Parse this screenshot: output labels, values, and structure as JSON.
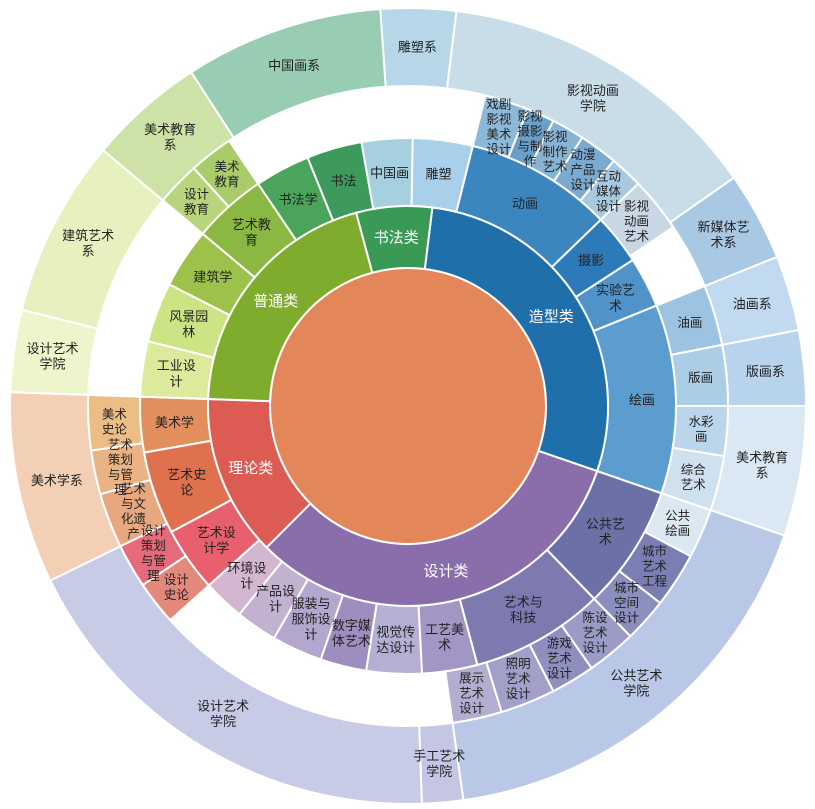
{
  "chart_data": {
    "type": "sunburst",
    "title": "",
    "colors": {
      "zaoxing": "#1f6faa",
      "sheji": "#8a6eab",
      "lilun": "#dc5b52",
      "putong": "#7fac2c",
      "shufa": "#3a9a55",
      "center": "#e3875a"
    },
    "rings": [
      {
        "level": 1,
        "segments": [
          {
            "label": "造型类",
            "start": 7,
            "end": 109,
            "color": "#1f6faa"
          },
          {
            "label": "设计类",
            "start": 109,
            "end": 225,
            "color": "#8a6eab"
          },
          {
            "label": "理论类",
            "start": 225,
            "end": 272,
            "color": "#dc5b52"
          },
          {
            "label": "普通类",
            "start": 272,
            "end": 345,
            "color": "#7fac2c"
          },
          {
            "label": "书法类",
            "start": 345,
            "end": 367,
            "color": "#3a9a55"
          }
        ]
      },
      {
        "level": 2,
        "segments": [
          {
            "label": "雕塑",
            "start": 1,
            "end": 14,
            "color": "#a9d0ea"
          },
          {
            "label": "动画",
            "start": 14,
            "end": 46,
            "color": "#3c86c0"
          },
          {
            "label": "摄影",
            "start": 46,
            "end": 57,
            "color": "#2d7ab8"
          },
          {
            "label": "实验艺术",
            "start": 57,
            "end": 68,
            "color": "#4f93c9"
          },
          {
            "label": "绘画",
            "start": 68,
            "end": 109,
            "color": "#5b9dcf"
          },
          {
            "label": "公共艺术",
            "start": 109,
            "end": 136,
            "color": "#6b71a6"
          },
          {
            "label": "艺术与科技",
            "start": 136,
            "end": 165,
            "color": "#7e7ab0"
          },
          {
            "label": "工艺美术",
            "start": 165,
            "end": 177,
            "color": "#a297c4"
          },
          {
            "label": "视觉传达设计",
            "start": 177,
            "end": 189,
            "color": "#b5b0d3"
          },
          {
            "label": "数字媒体艺术",
            "start": 189,
            "end": 199,
            "color": "#9e8dbf"
          },
          {
            "label": "服装与服饰设计",
            "start": 199,
            "end": 210,
            "color": "#b3a6cf"
          },
          {
            "label": "产品设计",
            "start": 210,
            "end": 219,
            "color": "#c2b2cf"
          },
          {
            "label": "环境设计",
            "start": 219,
            "end": 228,
            "color": "#d3b6cf"
          },
          {
            "label": "艺术设计学",
            "start": 228,
            "end": 242,
            "color": "#e8606d"
          },
          {
            "label": "艺术史论",
            "start": 242,
            "end": 260,
            "color": "#e0714f"
          },
          {
            "label": "美术学",
            "start": 260,
            "end": 272,
            "color": "#e28f5e"
          },
          {
            "label": "工业设计",
            "start": 272,
            "end": 284,
            "color": "#dcea9c"
          },
          {
            "label": "风景园林",
            "start": 284,
            "end": 297,
            "color": "#cce484"
          },
          {
            "label": "建筑学",
            "start": 297,
            "end": 310,
            "color": "#9dc24c"
          },
          {
            "label": "艺术教育",
            "start": 310,
            "end": 326,
            "color": "#8ab842"
          },
          {
            "label": "书法学",
            "start": 326,
            "end": 338,
            "color": "#4aa55a"
          },
          {
            "label": "书法",
            "start": 338,
            "end": 350,
            "color": "#3e9a5c"
          },
          {
            "label": "中国画",
            "start": 350,
            "end": 361,
            "color": "#a6cfe0"
          }
        ]
      },
      {
        "level": 3,
        "segments": [
          {
            "label": "戏剧影视美术设计",
            "start": 14,
            "end": 22,
            "color": "#8db8d8"
          },
          {
            "label": "影视摄影与制作",
            "start": 22,
            "end": 27,
            "color": "#6a9fc7"
          },
          {
            "label": "影视制作艺术",
            "start": 27,
            "end": 33,
            "color": "#88b4d4"
          },
          {
            "label": "动漫产品设计",
            "start": 33,
            "end": 40,
            "color": "#7aaad0"
          },
          {
            "label": "互动媒体设计",
            "start": 40,
            "end": 46,
            "color": "#a9c9e1"
          },
          {
            "label": "影视动画艺术",
            "start": 46,
            "end": 56,
            "color": "#c8d7e3"
          },
          {
            "label": "油画",
            "start": 68,
            "end": 79,
            "color": "#9cc4e2"
          },
          {
            "label": "版画",
            "start": 79,
            "end": 90,
            "color": "#abcde6"
          },
          {
            "label": "水彩画",
            "start": 90,
            "end": 99,
            "color": "#bbd6ea"
          },
          {
            "label": "综合艺术",
            "start": 99,
            "end": 109,
            "color": "#cfe1ef"
          },
          {
            "label": "公共绘画",
            "start": 109,
            "end": 118,
            "color": "#dbe8f2"
          },
          {
            "label": "城市艺术工程",
            "start": 118,
            "end": 128,
            "color": "#7a7fb3"
          },
          {
            "label": "城市空间设计",
            "start": 128,
            "end": 136,
            "color": "#8a8fbe"
          },
          {
            "label": "陈设艺术设计",
            "start": 136,
            "end": 145,
            "color": "#9a9cc6"
          },
          {
            "label": "游戏艺术设计",
            "start": 145,
            "end": 153,
            "color": "#8e8fbf"
          },
          {
            "label": "照明艺术设计",
            "start": 153,
            "end": 163,
            "color": "#a29fc9"
          },
          {
            "label": "展示艺术设计",
            "start": 163,
            "end": 172,
            "color": "#b2aed2"
          },
          {
            "label": "设计史论",
            "start": 228,
            "end": 236,
            "color": "#e3897c"
          },
          {
            "label": "设计策划与管理",
            "start": 236,
            "end": 244,
            "color": "#e66b7a"
          },
          {
            "label": "艺术与文化遗产",
            "start": 244,
            "end": 254,
            "color": "#e8a77f"
          },
          {
            "label": "艺术策划与管理",
            "start": 254,
            "end": 262,
            "color": "#eab384"
          },
          {
            "label": "美术史论",
            "start": 262,
            "end": 272,
            "color": "#edbd86"
          },
          {
            "label": "设计教育",
            "start": 310,
            "end": 318,
            "color": "#b9d57c"
          },
          {
            "label": "美术教育",
            "start": 318,
            "end": 326,
            "color": "#a9cc6b"
          }
        ]
      },
      {
        "level": 4,
        "segments": [
          {
            "label": "雕塑系",
            "start": -4,
            "end": 7,
            "color": "#b7d7e8"
          },
          {
            "label": "影视动画学院",
            "start": 7,
            "end": 55,
            "color": "#c9dde9"
          },
          {
            "label": "新媒体艺术系",
            "start": 55,
            "end": 68,
            "color": "#a9c8e3"
          },
          {
            "label": "油画系",
            "start": 68,
            "end": 79,
            "color": "#c2daf0"
          },
          {
            "label": "版画系",
            "start": 79,
            "end": 90,
            "color": "#b8d3ec"
          },
          {
            "label": "美术教育系",
            "start": 90,
            "end": 109,
            "color": "#dae8f3"
          },
          {
            "label": "公共艺术学院",
            "start": 109,
            "end": 172,
            "color": "#b8c8e6"
          },
          {
            "label": "手工艺术学院",
            "start": 172,
            "end": 178,
            "color": "#c5c6e3"
          },
          {
            "label": "设计艺术学院",
            "start": 178,
            "end": 244,
            "color": "#c8cbe6"
          },
          {
            "label": "美术学系",
            "start": 244,
            "end": 272,
            "color": "#f2cfb5"
          },
          {
            "label": "设计艺术学院",
            "start": 272,
            "end": 284,
            "color": "#eef5cd"
          },
          {
            "label": "建筑艺术系",
            "start": 284,
            "end": 310,
            "color": "#e7f0bf"
          },
          {
            "label": "美术教育系",
            "start": 310,
            "end": 327,
            "color": "#cde2a7"
          },
          {
            "label": "中国画系",
            "start": 327,
            "end": 356,
            "color": "#98cdb4"
          }
        ]
      }
    ]
  }
}
